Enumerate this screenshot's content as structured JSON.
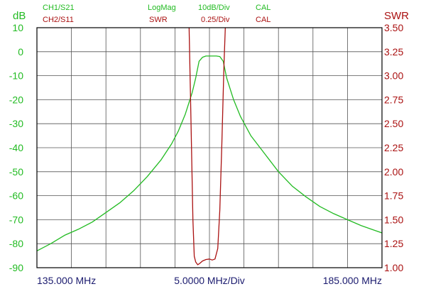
{
  "header": {
    "ch1_label": "CH1/S21",
    "ch1_format": "LogMag",
    "ch1_scale": "10dB/Div",
    "ch1_cal": "CAL",
    "ch2_label": "CH2/S11",
    "ch2_format": "SWR",
    "ch2_scale": "0.25/Div",
    "ch2_cal": "CAL"
  },
  "colors": {
    "ch1": "#22bb22",
    "ch2": "#aa1111",
    "axis_text": "#1a1a6e",
    "grid": "#555555",
    "frame": "#000000"
  },
  "chart_data": {
    "type": "line",
    "grid": true,
    "x_range_mhz": [
      135.0,
      185.0
    ],
    "x_tick_labels": [
      "135.000 MHz",
      "5.0000 MHz/Div",
      "185.000 MHz"
    ],
    "y_left": {
      "unit": "dB",
      "range": [
        -90,
        10
      ],
      "ticks": [
        "10",
        "0",
        "-10",
        "-20",
        "-30",
        "-40",
        "-50",
        "-60",
        "-70",
        "-80",
        "-90"
      ]
    },
    "y_right": {
      "unit": "SWR",
      "range": [
        1.0,
        3.5
      ],
      "ticks": [
        "3.50",
        "3.25",
        "3.00",
        "2.75",
        "2.50",
        "2.25",
        "2.00",
        "1.75",
        "1.50",
        "1.25",
        "1.00"
      ]
    },
    "series": [
      {
        "name": "CH1/S21",
        "axis": "left",
        "color": "#22bb22",
        "x": [
          135.0,
          137.0,
          139.0,
          141.0,
          143.0,
          145.0,
          147.0,
          149.0,
          151.0,
          153.0,
          154.5,
          155.5,
          156.5,
          157.5,
          158.0,
          158.5,
          159.0,
          159.5,
          160.0,
          160.5,
          161.0,
          161.5,
          162.0,
          162.5,
          163.5,
          164.5,
          166.0,
          168.0,
          170.0,
          172.0,
          174.0,
          176.0,
          178.0,
          180.0,
          182.0,
          184.0,
          185.0
        ],
        "y": [
          -83,
          -80,
          -76.5,
          -74,
          -71,
          -67,
          -63,
          -58,
          -52,
          -45,
          -38.5,
          -33,
          -26,
          -17,
          -11,
          -4,
          -2.3,
          -1.8,
          -1.8,
          -1.8,
          -1.8,
          -2,
          -4,
          -11,
          -20,
          -27,
          -35,
          -42.5,
          -50,
          -56,
          -60.5,
          -64.5,
          -67.5,
          -70,
          -72.5,
          -74.5,
          -75.5
        ]
      },
      {
        "name": "CH2/S11",
        "axis": "right",
        "color": "#aa1111",
        "x": [
          157.0,
          157.3,
          157.6,
          157.8,
          158.0,
          158.3,
          158.6,
          159.0,
          159.5,
          160.0,
          160.4,
          160.8,
          161.2,
          161.5,
          161.8,
          162.1,
          162.4
        ],
        "y": [
          3.7,
          2.6,
          1.5,
          1.12,
          1.06,
          1.03,
          1.045,
          1.07,
          1.085,
          1.09,
          1.08,
          1.09,
          1.2,
          1.6,
          2.3,
          3.1,
          3.7
        ]
      }
    ]
  }
}
